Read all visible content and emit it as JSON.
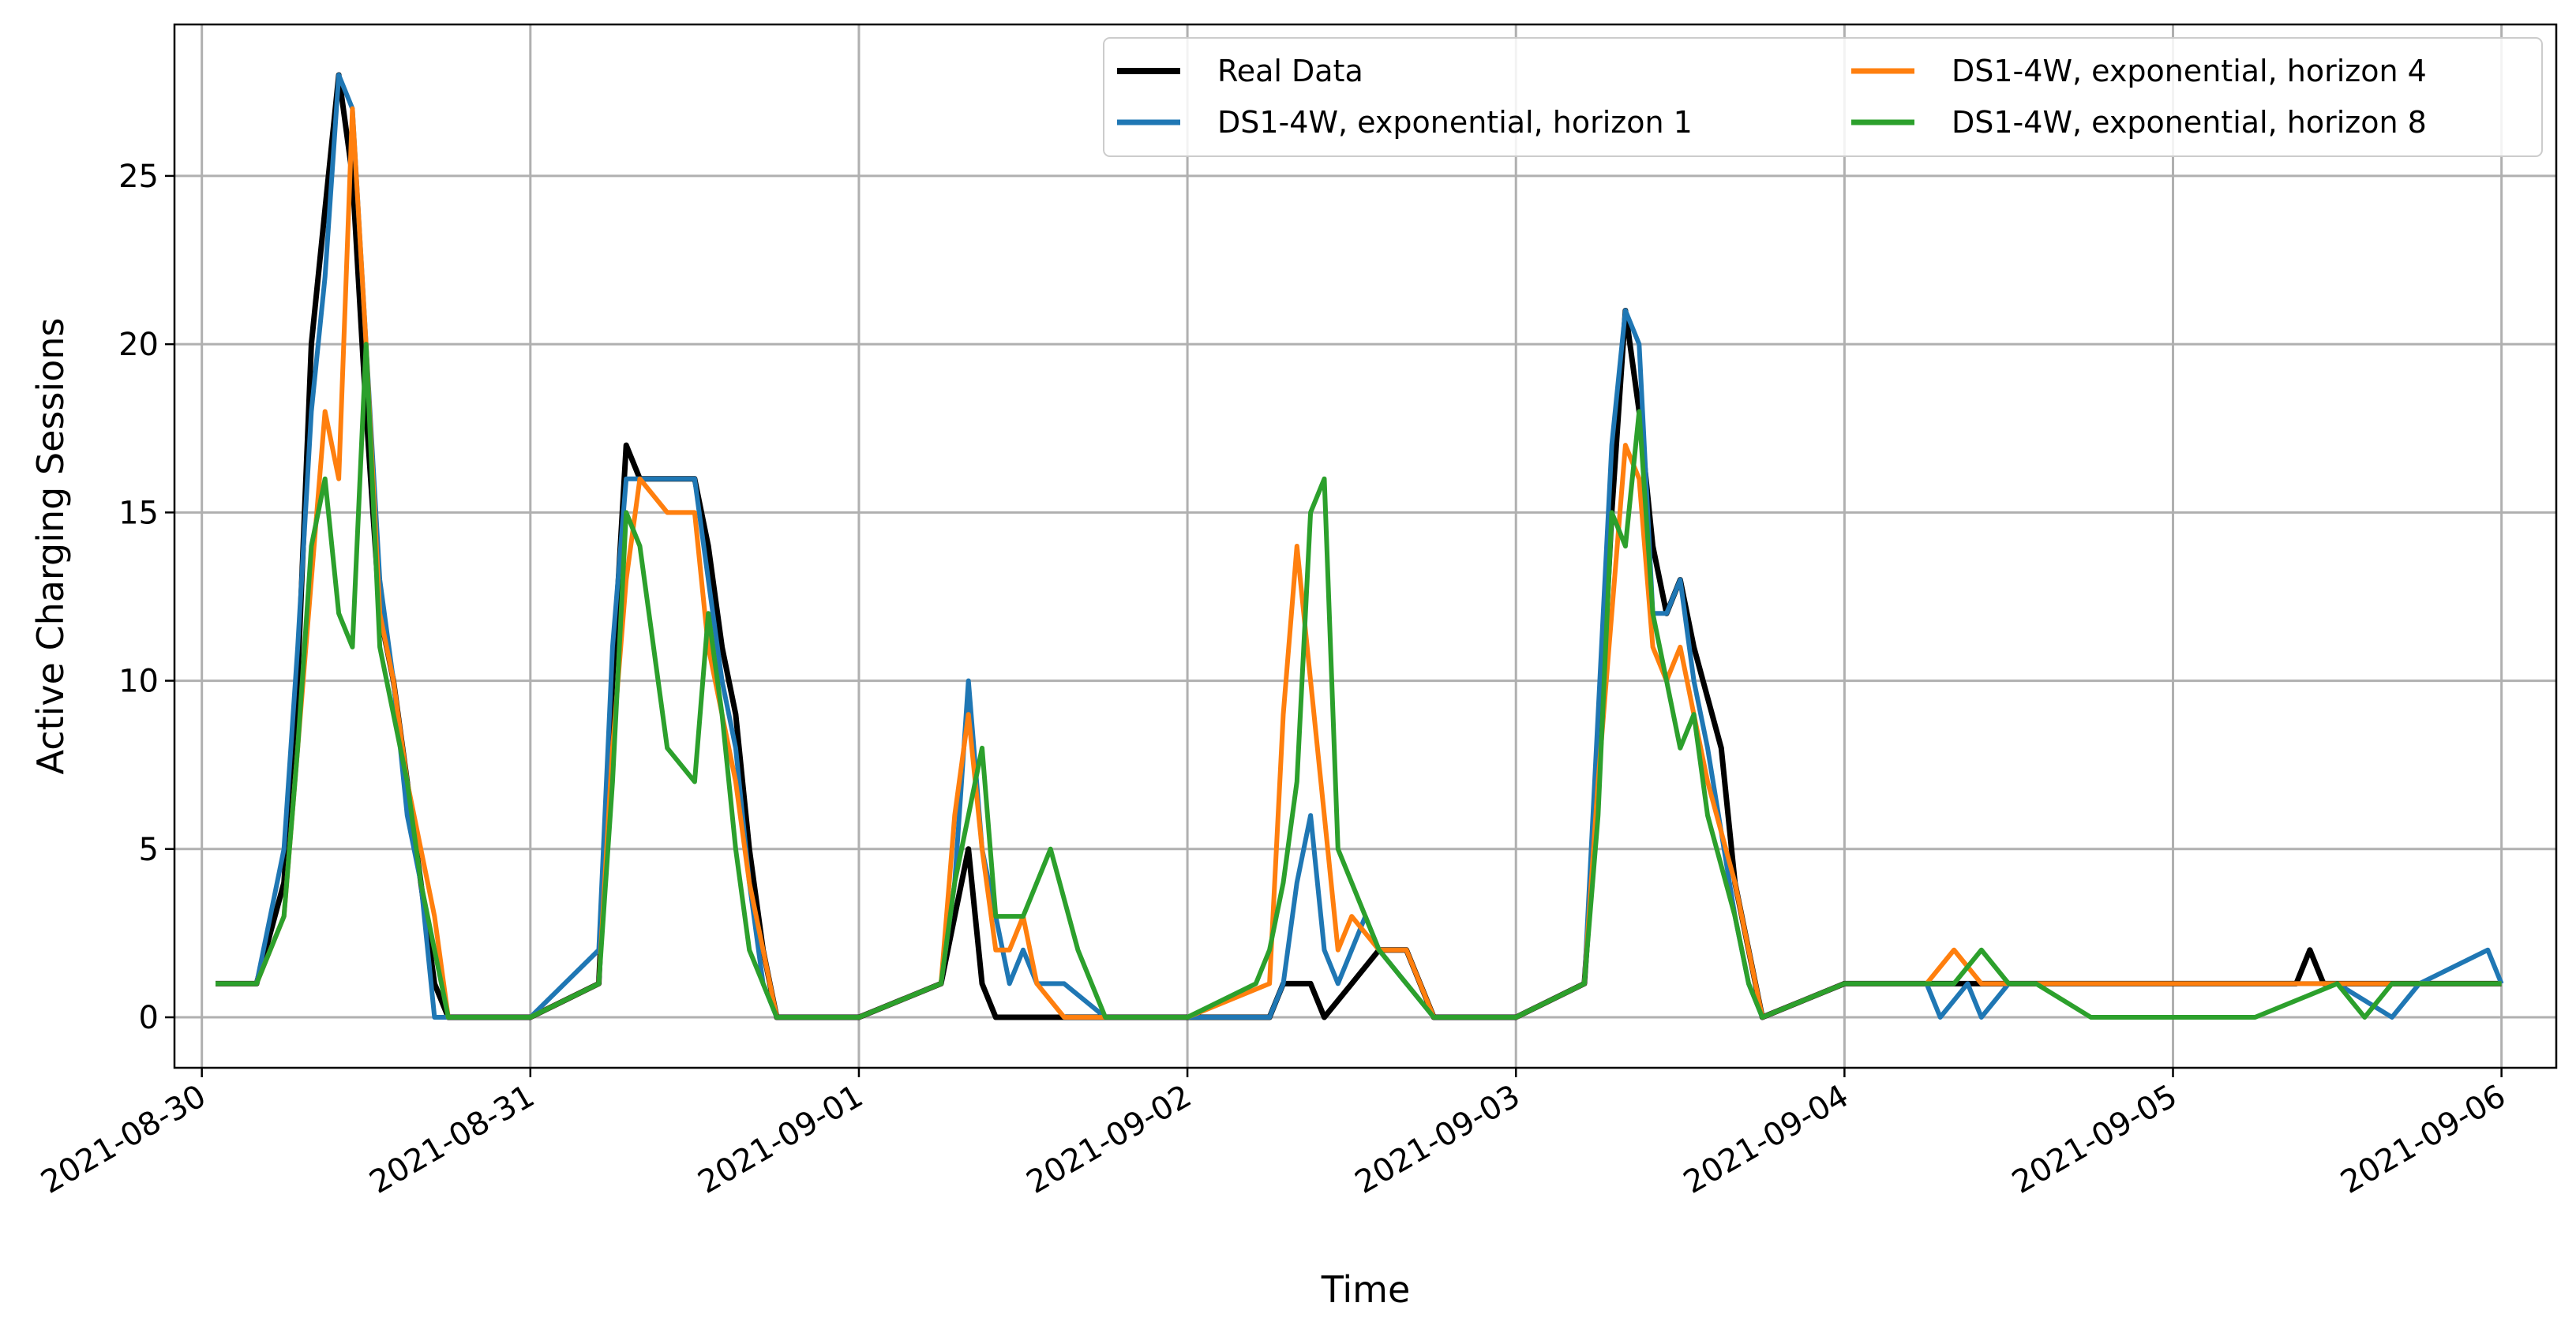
{
  "chart_data": {
    "type": "line",
    "title": "",
    "xlabel": "Time",
    "ylabel": "Active Charging Sessions",
    "x_ticks": [
      "2021-08-30",
      "2021-08-31",
      "2021-09-01",
      "2021-09-02",
      "2021-09-03",
      "2021-09-04",
      "2021-09-05",
      "2021-09-06"
    ],
    "y_ticks": [
      0,
      5,
      10,
      15,
      20,
      25
    ],
    "xlim": [
      "2021-08-29T22:00",
      "2021-09-06T04:00"
    ],
    "ylim": [
      -1.5,
      29.5
    ],
    "grid": true,
    "legend": {
      "placement": "top-right",
      "columns": 2
    },
    "series": [
      {
        "name": "Real Data",
        "color": "#000000",
        "x": [
          "2021-08-30T01:00",
          "2021-08-30T04:00",
          "2021-08-30T06:00",
          "2021-08-30T07:00",
          "2021-08-30T08:00",
          "2021-08-30T09:00",
          "2021-08-30T10:00",
          "2021-08-30T11:00",
          "2021-08-30T12:00",
          "2021-08-30T13:00",
          "2021-08-30T14:00",
          "2021-08-30T15:00",
          "2021-08-30T16:00",
          "2021-08-30T17:00",
          "2021-08-30T18:00",
          "2021-08-31T00:00",
          "2021-08-31T05:00",
          "2021-08-31T06:00",
          "2021-08-31T07:00",
          "2021-08-31T08:00",
          "2021-08-31T10:00",
          "2021-08-31T12:00",
          "2021-08-31T13:00",
          "2021-08-31T14:00",
          "2021-08-31T15:00",
          "2021-08-31T16:00",
          "2021-08-31T17:00",
          "2021-08-31T18:00",
          "2021-09-01T00:00",
          "2021-09-01T06:00",
          "2021-09-01T07:00",
          "2021-09-01T08:00",
          "2021-09-01T09:00",
          "2021-09-01T10:00",
          "2021-09-01T12:00",
          "2021-09-01T15:00",
          "2021-09-01T18:00",
          "2021-09-02T00:00",
          "2021-09-02T06:00",
          "2021-09-02T07:00",
          "2021-09-02T08:00",
          "2021-09-02T09:00",
          "2021-09-02T10:00",
          "2021-09-02T12:00",
          "2021-09-02T14:00",
          "2021-09-02T16:00",
          "2021-09-02T18:00",
          "2021-09-03T00:00",
          "2021-09-03T05:00",
          "2021-09-03T06:00",
          "2021-09-03T07:00",
          "2021-09-03T08:00",
          "2021-09-03T09:00",
          "2021-09-03T10:00",
          "2021-09-03T11:00",
          "2021-09-03T12:00",
          "2021-09-03T13:00",
          "2021-09-03T15:00",
          "2021-09-03T16:00",
          "2021-09-03T17:00",
          "2021-09-03T18:00",
          "2021-09-04T00:00",
          "2021-09-04T06:00",
          "2021-09-04T10:00",
          "2021-09-04T12:00",
          "2021-09-04T18:00",
          "2021-09-05T00:00",
          "2021-09-05T06:00",
          "2021-09-05T09:00",
          "2021-09-05T10:00",
          "2021-09-05T11:00",
          "2021-09-05T14:00",
          "2021-09-05T18:00",
          "2021-09-06T00:00"
        ],
        "values": [
          1,
          1,
          4,
          10,
          20,
          24,
          28,
          25,
          18,
          12,
          10,
          7,
          4,
          1,
          0,
          0,
          1,
          10,
          17,
          16,
          16,
          16,
          14,
          11,
          9,
          5,
          2,
          0,
          0,
          1,
          3,
          5,
          1,
          0,
          0,
          0,
          0,
          0,
          0,
          1,
          1,
          1,
          0,
          1,
          2,
          2,
          0,
          0,
          1,
          7,
          15,
          21,
          18,
          14,
          12,
          13,
          11,
          8,
          4,
          2,
          0,
          1,
          1,
          1,
          1,
          1,
          1,
          1,
          1,
          2,
          1,
          1,
          1,
          1
        ]
      },
      {
        "name": "DS1-4W, exponential, horizon 1",
        "color": "#1f77b4",
        "x": [
          "2021-08-30T01:00",
          "2021-08-30T04:00",
          "2021-08-30T06:00",
          "2021-08-30T07:00",
          "2021-08-30T08:00",
          "2021-08-30T09:00",
          "2021-08-30T10:00",
          "2021-08-30T11:00",
          "2021-08-30T12:00",
          "2021-08-30T13:00",
          "2021-08-30T14:00",
          "2021-08-30T15:00",
          "2021-08-30T16:00",
          "2021-08-30T17:00",
          "2021-08-30T18:00",
          "2021-08-31T00:00",
          "2021-08-31T05:00",
          "2021-08-31T06:00",
          "2021-08-31T07:00",
          "2021-08-31T08:00",
          "2021-08-31T10:00",
          "2021-08-31T12:00",
          "2021-08-31T13:00",
          "2021-08-31T14:00",
          "2021-08-31T15:00",
          "2021-08-31T16:00",
          "2021-08-31T17:00",
          "2021-08-31T18:00",
          "2021-09-01T00:00",
          "2021-09-01T06:00",
          "2021-09-01T07:00",
          "2021-09-01T08:00",
          "2021-09-01T09:00",
          "2021-09-01T10:00",
          "2021-09-01T11:00",
          "2021-09-01T12:00",
          "2021-09-01T13:00",
          "2021-09-01T15:00",
          "2021-09-01T18:00",
          "2021-09-02T00:00",
          "2021-09-02T06:00",
          "2021-09-02T07:00",
          "2021-09-02T08:00",
          "2021-09-02T09:00",
          "2021-09-02T10:00",
          "2021-09-02T11:00",
          "2021-09-02T12:00",
          "2021-09-02T13:00",
          "2021-09-02T14:00",
          "2021-09-02T16:00",
          "2021-09-02T18:00",
          "2021-09-03T00:00",
          "2021-09-03T05:00",
          "2021-09-03T06:00",
          "2021-09-03T07:00",
          "2021-09-03T08:00",
          "2021-09-03T09:00",
          "2021-09-03T10:00",
          "2021-09-03T11:00",
          "2021-09-03T12:00",
          "2021-09-03T13:00",
          "2021-09-03T14:00",
          "2021-09-03T16:00",
          "2021-09-03T17:00",
          "2021-09-03T18:00",
          "2021-09-04T00:00",
          "2021-09-04T06:00",
          "2021-09-04T07:00",
          "2021-09-04T09:00",
          "2021-09-04T10:00",
          "2021-09-04T12:00",
          "2021-09-04T18:00",
          "2021-09-05T00:00",
          "2021-09-05T06:00",
          "2021-09-05T12:00",
          "2021-09-05T16:00",
          "2021-09-05T18:00",
          "2021-09-05T23:00",
          "2021-09-06T00:00"
        ],
        "values": [
          1,
          1,
          5,
          11,
          18,
          22,
          28,
          27,
          20,
          13,
          10,
          6,
          4,
          0,
          0,
          0,
          2,
          11,
          16,
          16,
          16,
          16,
          13,
          10,
          8,
          4,
          1,
          0,
          0,
          1,
          4,
          10,
          5,
          3,
          1,
          2,
          1,
          1,
          0,
          0,
          0,
          1,
          4,
          6,
          2,
          1,
          2,
          3,
          2,
          1,
          0,
          0,
          1,
          9,
          17,
          21,
          20,
          12,
          12,
          13,
          10,
          8,
          3,
          1,
          0,
          1,
          1,
          0,
          1,
          0,
          1,
          1,
          1,
          1,
          1,
          0,
          1,
          2,
          1
        ]
      },
      {
        "name": "DS1-4W, exponential, horizon 4",
        "color": "#ff7f0e",
        "x": [
          "2021-08-30T01:00",
          "2021-08-30T04:00",
          "2021-08-30T06:00",
          "2021-08-30T07:00",
          "2021-08-30T08:00",
          "2021-08-30T09:00",
          "2021-08-30T10:00",
          "2021-08-30T11:00",
          "2021-08-30T12:00",
          "2021-08-30T13:00",
          "2021-08-30T14:00",
          "2021-08-30T15:00",
          "2021-08-30T16:00",
          "2021-08-30T17:00",
          "2021-08-30T18:00",
          "2021-08-31T00:00",
          "2021-08-31T05:00",
          "2021-08-31T06:00",
          "2021-08-31T07:00",
          "2021-08-31T08:00",
          "2021-08-31T10:00",
          "2021-08-31T12:00",
          "2021-08-31T13:00",
          "2021-08-31T14:00",
          "2021-08-31T15:00",
          "2021-08-31T16:00",
          "2021-08-31T17:00",
          "2021-08-31T18:00",
          "2021-09-01T00:00",
          "2021-09-01T06:00",
          "2021-09-01T07:00",
          "2021-09-01T08:00",
          "2021-09-01T09:00",
          "2021-09-01T10:00",
          "2021-09-01T11:00",
          "2021-09-01T12:00",
          "2021-09-01T13:00",
          "2021-09-01T15:00",
          "2021-09-01T18:00",
          "2021-09-02T00:00",
          "2021-09-02T06:00",
          "2021-09-02T07:00",
          "2021-09-02T08:00",
          "2021-09-02T09:00",
          "2021-09-02T10:00",
          "2021-09-02T11:00",
          "2021-09-02T12:00",
          "2021-09-02T14:00",
          "2021-09-02T16:00",
          "2021-09-02T18:00",
          "2021-09-03T00:00",
          "2021-09-03T05:00",
          "2021-09-03T06:00",
          "2021-09-03T07:00",
          "2021-09-03T08:00",
          "2021-09-03T09:00",
          "2021-09-03T10:00",
          "2021-09-03T11:00",
          "2021-09-03T12:00",
          "2021-09-03T13:00",
          "2021-09-03T14:00",
          "2021-09-03T16:00",
          "2021-09-03T17:00",
          "2021-09-03T18:00",
          "2021-09-04T00:00",
          "2021-09-04T06:00",
          "2021-09-04T08:00",
          "2021-09-04T10:00",
          "2021-09-04T12:00",
          "2021-09-04T18:00",
          "2021-09-05T00:00",
          "2021-09-05T06:00",
          "2021-09-05T07:00",
          "2021-09-05T10:00",
          "2021-09-05T14:00",
          "2021-09-05T18:00",
          "2021-09-06T00:00"
        ],
        "values": [
          1,
          1,
          3,
          8,
          13,
          18,
          16,
          27,
          20,
          12,
          10,
          7,
          5,
          3,
          0,
          0,
          1,
          8,
          13,
          16,
          15,
          15,
          11,
          9,
          7,
          4,
          2,
          0,
          0,
          1,
          6,
          9,
          5,
          2,
          2,
          3,
          1,
          0,
          0,
          0,
          1,
          9,
          14,
          10,
          6,
          2,
          3,
          2,
          2,
          0,
          0,
          1,
          7,
          12,
          17,
          16,
          11,
          10,
          11,
          9,
          7,
          4,
          2,
          0,
          1,
          1,
          2,
          1,
          1,
          1,
          1,
          1,
          1,
          1,
          1,
          1,
          1
        ]
      },
      {
        "name": "DS1-4W, exponential, horizon 8",
        "color": "#2ca02c",
        "x": [
          "2021-08-30T01:00",
          "2021-08-30T04:00",
          "2021-08-30T06:00",
          "2021-08-30T07:00",
          "2021-08-30T08:00",
          "2021-08-30T09:00",
          "2021-08-30T10:00",
          "2021-08-30T11:00",
          "2021-08-30T12:00",
          "2021-08-30T13:00",
          "2021-08-30T14:00",
          "2021-08-30T15:00",
          "2021-08-30T16:00",
          "2021-08-30T17:00",
          "2021-08-30T18:00",
          "2021-08-31T00:00",
          "2021-08-31T05:00",
          "2021-08-31T06:00",
          "2021-08-31T07:00",
          "2021-08-31T08:00",
          "2021-08-31T10:00",
          "2021-08-31T12:00",
          "2021-08-31T13:00",
          "2021-08-31T14:00",
          "2021-08-31T15:00",
          "2021-08-31T16:00",
          "2021-08-31T17:00",
          "2021-08-31T18:00",
          "2021-09-01T00:00",
          "2021-09-01T06:00",
          "2021-09-01T07:00",
          "2021-09-01T08:00",
          "2021-09-01T09:00",
          "2021-09-01T10:00",
          "2021-09-01T12:00",
          "2021-09-01T14:00",
          "2021-09-01T16:00",
          "2021-09-01T18:00",
          "2021-09-02T00:00",
          "2021-09-02T05:00",
          "2021-09-02T06:00",
          "2021-09-02T07:00",
          "2021-09-02T08:00",
          "2021-09-02T09:00",
          "2021-09-02T10:00",
          "2021-09-02T11:00",
          "2021-09-02T12:00",
          "2021-09-02T14:00",
          "2021-09-02T16:00",
          "2021-09-02T18:00",
          "2021-09-03T00:00",
          "2021-09-03T05:00",
          "2021-09-03T06:00",
          "2021-09-03T07:00",
          "2021-09-03T08:00",
          "2021-09-03T09:00",
          "2021-09-03T10:00",
          "2021-09-03T11:00",
          "2021-09-03T12:00",
          "2021-09-03T13:00",
          "2021-09-03T14:00",
          "2021-09-03T16:00",
          "2021-09-03T17:00",
          "2021-09-03T18:00",
          "2021-09-04T00:00",
          "2021-09-04T06:00",
          "2021-09-04T08:00",
          "2021-09-04T10:00",
          "2021-09-04T12:00",
          "2021-09-04T14:00",
          "2021-09-04T18:00",
          "2021-09-05T00:00",
          "2021-09-05T06:00",
          "2021-09-05T12:00",
          "2021-09-05T14:00",
          "2021-09-05T16:00",
          "2021-09-05T18:00",
          "2021-09-06T00:00"
        ],
        "values": [
          1,
          1,
          3,
          8,
          14,
          16,
          12,
          11,
          20,
          11,
          9,
          7,
          4,
          2,
          0,
          0,
          1,
          7,
          15,
          14,
          8,
          7,
          12,
          9,
          5,
          2,
          1,
          0,
          0,
          1,
          4,
          6,
          8,
          3,
          3,
          5,
          2,
          0,
          0,
          1,
          2,
          4,
          7,
          15,
          16,
          5,
          4,
          2,
          1,
          0,
          0,
          1,
          6,
          15,
          14,
          18,
          12,
          10,
          8,
          9,
          6,
          3,
          1,
          0,
          1,
          1,
          1,
          2,
          1,
          1,
          0,
          0,
          0,
          1,
          0,
          1,
          1,
          1
        ]
      }
    ]
  }
}
